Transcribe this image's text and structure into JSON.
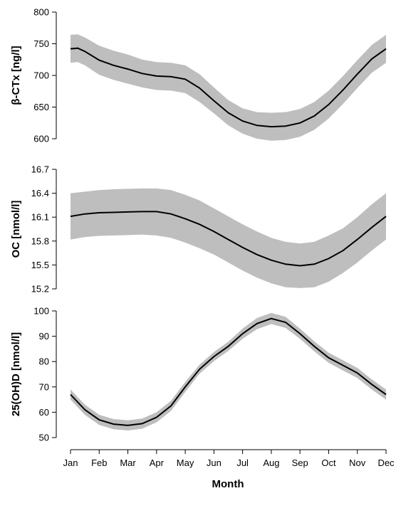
{
  "chart_data": {
    "type": "line",
    "xlabel": "Month",
    "x_ticks": [
      "Jan",
      "Feb",
      "Mar",
      "Apr",
      "May",
      "Jun",
      "Jul",
      "Aug",
      "Sep",
      "Oct",
      "Nov",
      "Dec"
    ],
    "band_color": "#bebebe",
    "line_color": "#000000",
    "panels": [
      {
        "ylabel": "β-CTx [ng/l]",
        "ylim": [
          600,
          800
        ],
        "yticks": [
          600,
          650,
          700,
          750,
          800
        ],
        "x": [
          0,
          0.25,
          0.5,
          1,
          1.5,
          2,
          2.5,
          3,
          3.5,
          4,
          4.5,
          5,
          5.5,
          6,
          6.5,
          7,
          7.5,
          8,
          8.5,
          9,
          9.5,
          10,
          10.5,
          11
        ],
        "center": [
          742,
          743,
          738,
          724,
          716,
          710,
          703,
          699,
          698,
          694,
          680,
          660,
          641,
          628,
          621,
          619,
          620,
          625,
          636,
          654,
          677,
          702,
          726,
          742
        ],
        "lower": [
          720,
          721,
          716,
          701,
          693,
          687,
          681,
          677,
          676,
          672,
          658,
          640,
          621,
          608,
          600,
          597,
          598,
          603,
          614,
          632,
          655,
          680,
          704,
          720
        ],
        "upper": [
          764,
          765,
          760,
          747,
          739,
          733,
          725,
          721,
          720,
          716,
          702,
          681,
          661,
          648,
          642,
          641,
          642,
          647,
          658,
          676,
          699,
          724,
          748,
          764
        ]
      },
      {
        "ylabel": "OC [nmol/l]",
        "ylim": [
          15.2,
          16.7
        ],
        "yticks": [
          "15.2",
          "15.5",
          "15.8",
          "16.1",
          "16.4",
          "16.7"
        ],
        "x": [
          0,
          0.5,
          1,
          1.5,
          2,
          2.5,
          3,
          3.5,
          4,
          4.5,
          5,
          5.5,
          6,
          6.5,
          7,
          7.5,
          8,
          8.5,
          9,
          9.5,
          10,
          10.5,
          11
        ],
        "center": [
          16.11,
          16.14,
          16.155,
          16.16,
          16.165,
          16.17,
          16.17,
          16.14,
          16.08,
          16.01,
          15.92,
          15.82,
          15.72,
          15.63,
          15.56,
          15.51,
          15.49,
          15.51,
          15.58,
          15.68,
          15.82,
          15.97,
          16.11
        ],
        "lower": [
          15.82,
          15.85,
          15.865,
          15.87,
          15.875,
          15.88,
          15.87,
          15.84,
          15.78,
          15.71,
          15.63,
          15.53,
          15.43,
          15.34,
          15.27,
          15.22,
          15.21,
          15.22,
          15.29,
          15.4,
          15.53,
          15.68,
          15.82
        ],
        "upper": [
          16.4,
          16.42,
          16.44,
          16.45,
          16.455,
          16.46,
          16.46,
          16.44,
          16.38,
          16.31,
          16.21,
          16.11,
          16.01,
          15.92,
          15.84,
          15.79,
          15.77,
          15.79,
          15.87,
          15.96,
          16.1,
          16.26,
          16.4
        ]
      },
      {
        "ylabel": "25(OH)D [nmol/l]",
        "ylim": [
          50,
          100
        ],
        "yticks": [
          50,
          60,
          70,
          80,
          90,
          100
        ],
        "x": [
          0,
          0.5,
          1,
          1.5,
          2,
          2.5,
          3,
          3.5,
          4,
          4.5,
          5,
          5.5,
          6,
          6.5,
          7,
          7.5,
          8,
          8.5,
          9,
          9.5,
          10,
          10.5,
          11
        ],
        "center": [
          67,
          61,
          57,
          55.3,
          54.8,
          55.5,
          58,
          62.5,
          70,
          77,
          82,
          86,
          91,
          95,
          97,
          95.5,
          91,
          86,
          81.5,
          78.5,
          75.5,
          71,
          67
        ],
        "lower": [
          65,
          59,
          55,
          53.3,
          52.8,
          53.5,
          56,
          60.5,
          68,
          75.2,
          80.2,
          84.2,
          89,
          92.8,
          94.8,
          93.3,
          89,
          84,
          79.5,
          76.5,
          73.5,
          69,
          65
        ],
        "upper": [
          69,
          63,
          59,
          57.3,
          56.8,
          57.5,
          60,
          64.5,
          72,
          78.8,
          83.8,
          87.8,
          93,
          97.2,
          99.2,
          97.7,
          93,
          88,
          83.5,
          80.5,
          77.5,
          73,
          69
        ]
      }
    ]
  }
}
